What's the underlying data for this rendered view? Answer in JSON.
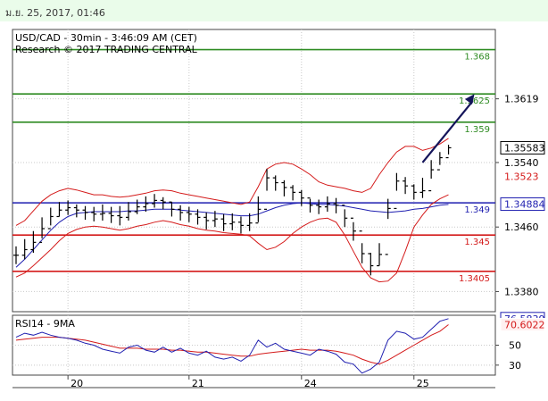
{
  "header": {
    "timestamp": "ม.ย. 25, 2017, 01:46"
  },
  "chart_data": {
    "type": "line",
    "title": "USD/CAD - 30min - 3:46:09 AM (CET)",
    "subtitle": "Research © 2017 TRADING CENTRAL",
    "instrument": "USD/CAD",
    "timeframe": "30min",
    "price_axis": {
      "ylim": [
        1.3355,
        1.3705
      ],
      "ticks": [
        {
          "label": "1.3619",
          "value": 1.3619
        },
        {
          "label": "1.3540",
          "value": 1.354
        },
        {
          "label": "1.3460",
          "value": 1.346
        },
        {
          "label": "1.3380",
          "value": 1.338
        }
      ]
    },
    "x_axis": {
      "labels": [
        {
          "label": "20",
          "index": 6
        },
        {
          "label": "21",
          "index": 20
        },
        {
          "label": "24",
          "index": 33
        },
        {
          "label": "25",
          "index": 46
        }
      ],
      "xlim": [
        0,
        55
      ]
    },
    "levels": [
      {
        "label": "1.368",
        "value": 1.368,
        "color": "#2e8b22",
        "text_color": "#2e8b22"
      },
      {
        "label": "1.3625",
        "value": 1.3625,
        "color": "#2e8b22",
        "text_color": "#2e8b22"
      },
      {
        "label": "1.359",
        "value": 1.359,
        "color": "#2e8b22",
        "text_color": "#2e8b22"
      },
      {
        "label": "1.349",
        "value": 1.349,
        "color": "#1f1fb0",
        "text_color": "#1f1fb0"
      },
      {
        "label": "1.345",
        "value": 1.345,
        "color": "#d41a1a",
        "text_color": "#d41a1a"
      },
      {
        "label": "1.3405",
        "value": 1.3405,
        "color": "#d41a1a",
        "text_color": "#d41a1a"
      }
    ],
    "price_badges": [
      {
        "label": "1.35583",
        "value": 1.35583,
        "bg": "#ffffff",
        "fg": "#000000",
        "border": "#000000"
      },
      {
        "label": "1.3523",
        "value": 1.3523,
        "bg": "#ffffff",
        "fg": "#d41a1a",
        "border": "#ffffff"
      },
      {
        "label": "1.34884",
        "value": 1.34884,
        "bg": "#ffffff",
        "fg": "#1f1fb0",
        "border": "#1f1fb0"
      }
    ],
    "close": [
      1.3425,
      1.3432,
      1.3441,
      1.3458,
      1.3473,
      1.3481,
      1.3484,
      1.3481,
      1.3478,
      1.3476,
      1.3477,
      1.3474,
      1.3472,
      1.3479,
      1.3485,
      1.3489,
      1.3493,
      1.3491,
      1.3482,
      1.3478,
      1.3476,
      1.3472,
      1.3468,
      1.347,
      1.3464,
      1.3466,
      1.3462,
      1.3465,
      1.3482,
      1.3521,
      1.3515,
      1.3509,
      1.3503,
      1.3496,
      1.3487,
      1.3485,
      1.3489,
      1.3487,
      1.3471,
      1.3455,
      1.3427,
      1.3412,
      1.3426,
      1.3483,
      1.3517,
      1.3511,
      1.3503,
      1.3505,
      1.3531,
      1.3546,
      1.35583
    ],
    "high": [
      1.3436,
      1.3445,
      1.3455,
      1.3472,
      1.3484,
      1.3491,
      1.3493,
      1.3488,
      1.3486,
      1.3485,
      1.3488,
      1.3485,
      1.3486,
      1.3491,
      1.3494,
      1.3498,
      1.3501,
      1.3497,
      1.3491,
      1.3487,
      1.3485,
      1.3482,
      1.3478,
      1.348,
      1.3476,
      1.3477,
      1.3473,
      1.3477,
      1.3498,
      1.3532,
      1.3524,
      1.3518,
      1.3512,
      1.3506,
      1.3495,
      1.3494,
      1.3498,
      1.3496,
      1.3482,
      1.3466,
      1.344,
      1.3428,
      1.344,
      1.3495,
      1.3527,
      1.3522,
      1.3513,
      1.3521,
      1.3543,
      1.3553,
      1.3562
    ],
    "low": [
      1.3414,
      1.342,
      1.3428,
      1.3446,
      1.3462,
      1.3473,
      1.3475,
      1.3472,
      1.3469,
      1.3467,
      1.3468,
      1.3465,
      1.3462,
      1.3468,
      1.3476,
      1.3479,
      1.3484,
      1.3482,
      1.3473,
      1.3468,
      1.3466,
      1.3463,
      1.3457,
      1.346,
      1.3455,
      1.3456,
      1.3452,
      1.3455,
      1.3466,
      1.3505,
      1.3505,
      1.3498,
      1.3493,
      1.3486,
      1.3478,
      1.3476,
      1.3479,
      1.3477,
      1.346,
      1.3443,
      1.3415,
      1.34,
      1.3412,
      1.347,
      1.3505,
      1.3501,
      1.3494,
      1.3496,
      1.352,
      1.3537,
      1.355
    ],
    "bollinger_upper": [
      1.3462,
      1.3468,
      1.348,
      1.3492,
      1.35,
      1.3505,
      1.3508,
      1.3506,
      1.3503,
      1.35,
      1.35,
      1.3498,
      1.3497,
      1.3498,
      1.35,
      1.3502,
      1.3505,
      1.3506,
      1.3505,
      1.3502,
      1.35,
      1.3498,
      1.3496,
      1.3494,
      1.3492,
      1.349,
      1.3488,
      1.3491,
      1.351,
      1.3532,
      1.3538,
      1.354,
      1.3538,
      1.3532,
      1.3525,
      1.3516,
      1.3512,
      1.351,
      1.3508,
      1.3505,
      1.3503,
      1.3508,
      1.3525,
      1.354,
      1.3553,
      1.356,
      1.356,
      1.3555,
      1.3558,
      1.3563,
      1.357
    ],
    "bollinger_lower": [
      1.3398,
      1.3403,
      1.3412,
      1.3422,
      1.3432,
      1.3443,
      1.3452,
      1.3457,
      1.346,
      1.3461,
      1.346,
      1.3458,
      1.3456,
      1.3458,
      1.3461,
      1.3463,
      1.3466,
      1.3468,
      1.3466,
      1.3463,
      1.3461,
      1.3458,
      1.3456,
      1.3455,
      1.3453,
      1.3452,
      1.3451,
      1.3449,
      1.344,
      1.3432,
      1.3435,
      1.3442,
      1.3452,
      1.346,
      1.3466,
      1.347,
      1.3471,
      1.3466,
      1.345,
      1.343,
      1.341,
      1.3397,
      1.3392,
      1.3393,
      1.3403,
      1.343,
      1.346,
      1.3475,
      1.3488,
      1.3495,
      1.35
    ],
    "moving_average": [
      1.341,
      1.342,
      1.3432,
      1.3444,
      1.3456,
      1.3466,
      1.3473,
      1.3477,
      1.3478,
      1.3479,
      1.3479,
      1.3479,
      1.3479,
      1.348,
      1.348,
      1.3481,
      1.3482,
      1.3482,
      1.3482,
      1.3481,
      1.348,
      1.3479,
      1.3478,
      1.3477,
      1.3476,
      1.3475,
      1.3474,
      1.3474,
      1.3476,
      1.348,
      1.3484,
      1.3487,
      1.3489,
      1.349,
      1.3489,
      1.3488,
      1.3488,
      1.3487,
      1.3486,
      1.3484,
      1.3482,
      1.348,
      1.3479,
      1.3478,
      1.3479,
      1.348,
      1.3482,
      1.3483,
      1.3485,
      1.3487,
      1.3488
    ],
    "projection": {
      "from": [
        47,
        1.354
      ],
      "to": [
        53,
        1.3625
      ],
      "color": "#14145a"
    },
    "rsi": {
      "title": "RSI14 - 9MA",
      "ylim": [
        20,
        80
      ],
      "ticks": [
        {
          "label": "50",
          "value": 50
        },
        {
          "label": "30",
          "value": 30
        }
      ],
      "rsi_values": [
        58,
        62,
        60,
        63,
        60,
        58,
        57,
        55,
        52,
        50,
        46,
        44,
        42,
        48,
        50,
        45,
        43,
        48,
        43,
        47,
        42,
        40,
        44,
        38,
        36,
        38,
        34,
        40,
        55,
        48,
        52,
        46,
        44,
        42,
        40,
        46,
        44,
        41,
        33,
        31,
        22,
        26,
        33,
        55,
        64,
        62,
        56,
        58,
        66,
        74,
        76.58
      ],
      "ma_values": [
        55,
        56,
        57,
        58,
        58,
        58,
        57,
        56,
        55,
        53,
        51,
        49,
        47,
        47,
        47,
        46,
        46,
        46,
        45,
        45,
        44,
        43,
        43,
        42,
        41,
        40,
        39,
        39,
        41,
        42,
        43,
        44,
        45,
        46,
        45,
        45,
        45,
        44,
        42,
        40,
        36,
        33,
        31,
        35,
        40,
        45,
        50,
        55,
        60,
        64,
        70.6
      ],
      "badges": [
        {
          "label": "76.5839",
          "value": 76.5839,
          "bg": "#ffffff",
          "fg": "#1f1fb0",
          "border": "#1f1fb0"
        },
        {
          "label": "70.6022",
          "value": 70.6022,
          "bg": "#fff0f0",
          "fg": "#d41a1a",
          "border": "#ffffff"
        }
      ]
    },
    "colors": {
      "candles": "#000000",
      "bollinger": "#d41a1a",
      "moving_average": "#1f1fb0",
      "rsi_line": "#1f1fb0",
      "rsi_ma": "#d41a1a",
      "grid": "#c9c9c9"
    }
  }
}
